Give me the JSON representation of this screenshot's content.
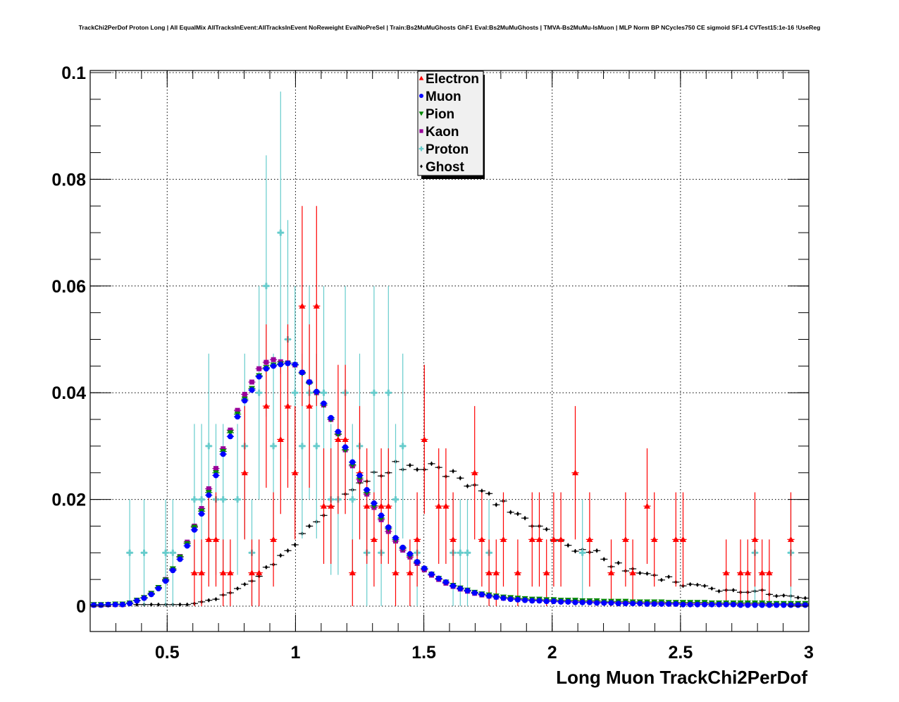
{
  "title": "TrackChi2PerDof Proton Long | All EqualMix AllTracksInEvent:AllTracksInEvent NoReweight EvalNoPreSel | Train:Bs2MuMuGhosts GhF1 Eval:Bs2MuMuGhosts | TMVA-Bs2MuMu-IsMuon | MLP Norm BP NCycles750 CE sigmoid SF1.4 CVTest15:1e-16 !UseReg",
  "chart_data": {
    "type": "scatter",
    "title": "TrackChi2PerDof Proton Long | All EqualMix AllTracksInEvent:AllTracksInEvent NoReweight EvalNoPreSel | Train:Bs2MuMuGhosts GhF1 Eval:Bs2MuMuGhosts | TMVA-Bs2MuMu-IsMuon | MLP Norm BP NCycles750 CE sigmoid SF1.4 CVTest15:1e-16 !UseReg",
    "xlabel": "Long Muon TrackChi2PerDof",
    "ylabel": "",
    "xlim": [
      0.2,
      3.0
    ],
    "ylim": [
      -0.0048,
      0.1005
    ],
    "bins": {
      "n": 100,
      "min": 0.2,
      "max": 3.0
    },
    "xticks": [
      0.5,
      1,
      1.5,
      2,
      2.5,
      3
    ],
    "xtick_labels": [
      "0.5",
      "1",
      "1.5",
      "2",
      "2.5",
      "3"
    ],
    "yticks": [
      0,
      0.02,
      0.04,
      0.06,
      0.08,
      0.1
    ],
    "ytick_labels": [
      "0",
      "0.02",
      "0.04",
      "0.06",
      "0.08",
      "0.1"
    ],
    "grid": true,
    "legend_position": "top-center",
    "series": [
      {
        "name": "Electron",
        "color": "#ff0000",
        "marker": "triangle-up",
        "sparse": {
          "14": 0.00625,
          "15": 0.00625,
          "16": 0.0125,
          "17": 0.0125,
          "18": 0.00625,
          "19": 0.00625,
          "21": 0.025,
          "22": 0.00625,
          "23": 0.00625,
          "24": 0.0375,
          "25": 0.0125,
          "26": 0.03125,
          "27": 0.0375,
          "28": 0.025,
          "29": 0.05625,
          "30": 0.0375,
          "31": 0.05625,
          "32": 0.01875,
          "33": 0.01875,
          "34": 0.03125,
          "35": 0.03125,
          "36": 0.00625,
          "37": 0.025,
          "38": 0.01875,
          "39": 0.0125,
          "40": 0.01875,
          "41": 0.01875,
          "42": 0.00625,
          "44": 0.00625,
          "45": 0.0125,
          "46": 0.03125,
          "48": 0.01875,
          "49": 0.01875,
          "50": 0.0125,
          "53": 0.025,
          "54": 0.0125,
          "55": 0.00625,
          "56": 0.00625,
          "57": 0.0125,
          "59": 0.00625,
          "61": 0.0125,
          "62": 0.0125,
          "63": 0.00625,
          "64": 0.0125,
          "65": 0.0125,
          "67": 0.025,
          "69": 0.0125,
          "72": 0.00625,
          "74": 0.0125,
          "75": 0.00625,
          "77": 0.01875,
          "78": 0.0125,
          "81": 0.0125,
          "82": 0.0125,
          "88": 0.00625,
          "90": 0.00625,
          "91": 0.00625,
          "92": 0.0125,
          "93": 0.00625,
          "94": 0.00625,
          "97": 0.0125
        }
      },
      {
        "name": "Muon",
        "color": "#0000ff",
        "marker": "circle",
        "values": [
          0.0002,
          0.0002,
          0.0003,
          0.0003,
          0.0003,
          0.0005,
          0.001,
          0.0015,
          0.0022,
          0.0033,
          0.0047,
          0.0067,
          0.0088,
          0.0113,
          0.0143,
          0.0173,
          0.0208,
          0.0245,
          0.0285,
          0.0318,
          0.0355,
          0.0385,
          0.0405,
          0.043,
          0.0445,
          0.045,
          0.0453,
          0.0455,
          0.0453,
          0.0438,
          0.042,
          0.0402,
          0.038,
          0.0353,
          0.0327,
          0.0298,
          0.027,
          0.0245,
          0.0218,
          0.0193,
          0.017,
          0.0148,
          0.0128,
          0.011,
          0.0098,
          0.0083,
          0.0071,
          0.006,
          0.0052,
          0.0045,
          0.0038,
          0.0033,
          0.0029,
          0.0025,
          0.0022,
          0.0019,
          0.0017,
          0.0015,
          0.0013,
          0.0012,
          0.0011,
          0.001,
          0.001,
          0.0009,
          0.0009,
          0.0008,
          0.0008,
          0.0007,
          0.0007,
          0.0007,
          0.0006,
          0.0006,
          0.0006,
          0.0005,
          0.0005,
          0.0005,
          0.0005,
          0.0004,
          0.0004,
          0.0004,
          0.0004,
          0.0004,
          0.0003,
          0.0003,
          0.0003,
          0.0003,
          0.0003,
          0.0003,
          0.0003,
          0.0003,
          0.0002,
          0.0002,
          0.0002,
          0.0002,
          0.0002,
          0.0002,
          0.0002,
          0.0002,
          0.0002,
          0.0002
        ]
      },
      {
        "name": "Pion",
        "color": "#008800",
        "marker": "triangle-down",
        "values": [
          0.0003,
          0.0003,
          0.0003,
          0.0004,
          0.0004,
          0.0006,
          0.0011,
          0.0016,
          0.0024,
          0.0035,
          0.0049,
          0.007,
          0.0092,
          0.0117,
          0.0148,
          0.0178,
          0.0213,
          0.025,
          0.029,
          0.0325,
          0.036,
          0.0388,
          0.0408,
          0.0432,
          0.0447,
          0.0452,
          0.0454,
          0.0455,
          0.0452,
          0.0436,
          0.0418,
          0.04,
          0.0377,
          0.035,
          0.0322,
          0.0293,
          0.0265,
          0.024,
          0.0213,
          0.0188,
          0.0165,
          0.0145,
          0.0125,
          0.0108,
          0.0095,
          0.0082,
          0.007,
          0.006,
          0.0052,
          0.0045,
          0.0039,
          0.0034,
          0.003,
          0.0026,
          0.0023,
          0.0021,
          0.0019,
          0.0017,
          0.0016,
          0.0015,
          0.0014,
          0.0013,
          0.0013,
          0.0012,
          0.0012,
          0.0011,
          0.0011,
          0.0011,
          0.001,
          0.001,
          0.001,
          0.0009,
          0.0009,
          0.0009,
          0.0009,
          0.0008,
          0.0008,
          0.0008,
          0.0008,
          0.0008,
          0.0007,
          0.0007,
          0.0007,
          0.0007,
          0.0007,
          0.0007,
          0.0006,
          0.0006,
          0.0006,
          0.0006,
          0.0006,
          0.0006,
          0.0006,
          0.0006,
          0.0005,
          0.0005,
          0.0005,
          0.0005,
          0.0005,
          0.0005
        ]
      },
      {
        "name": "Kaon",
        "color": "#990099",
        "marker": "square",
        "values": [
          0.0002,
          0.0002,
          0.0003,
          0.0003,
          0.0003,
          0.0006,
          0.0011,
          0.0016,
          0.0024,
          0.0035,
          0.005,
          0.0069,
          0.0093,
          0.012,
          0.015,
          0.0183,
          0.022,
          0.0258,
          0.0295,
          0.033,
          0.0367,
          0.0397,
          0.042,
          0.0445,
          0.0457,
          0.0462,
          0.0458,
          0.0456,
          0.0452,
          0.0438,
          0.042,
          0.04,
          0.0377,
          0.035,
          0.0323,
          0.0293,
          0.0263,
          0.0237,
          0.021,
          0.0185,
          0.0162,
          0.014,
          0.0122,
          0.0105,
          0.0092,
          0.008,
          0.0068,
          0.0058,
          0.005,
          0.0043,
          0.0037,
          0.0032,
          0.0028,
          0.0024,
          0.0021,
          0.0019,
          0.0017,
          0.0015,
          0.0014,
          0.0013,
          0.0012,
          0.0011,
          0.0011,
          0.001,
          0.001,
          0.0009,
          0.0009,
          0.0009,
          0.0008,
          0.0008,
          0.0008,
          0.0007,
          0.0007,
          0.0007,
          0.0007,
          0.0006,
          0.0006,
          0.0006,
          0.0006,
          0.0006,
          0.0005,
          0.0005,
          0.0005,
          0.0005,
          0.0005,
          0.0005,
          0.0004,
          0.0004,
          0.0004,
          0.0004,
          0.0004,
          0.0004,
          0.0004,
          0.0004,
          0.0004,
          0.0003,
          0.0003,
          0.0003,
          0.0003,
          0.0003
        ]
      },
      {
        "name": "Proton",
        "color": "#66cccc",
        "marker": "cross",
        "sparse": {
          "5": 0.01,
          "7": 0.01,
          "10": 0.01,
          "11": 0.01,
          "14": 0.02,
          "15": 0.02,
          "16": 0.03,
          "17": 0.02,
          "18": 0.02,
          "20": 0.02,
          "21": 0.03,
          "22": 0.01,
          "23": 0.04,
          "24": 0.06,
          "25": 0.03,
          "26": 0.07,
          "27": 0.05,
          "28": 0.04,
          "29": 0.03,
          "30": 0.04,
          "31": 0.03,
          "32": 0.04,
          "33": 0.02,
          "34": 0.02,
          "35": 0.04,
          "36": 0.02,
          "37": 0.03,
          "38": 0.01,
          "39": 0.04,
          "40": 0.01,
          "41": 0.04,
          "42": 0.02,
          "43": 0.03,
          "45": 0.01,
          "50": 0.01,
          "51": 0.01,
          "52": 0.01,
          "55": 0.01,
          "68": 0.01,
          "92": 0.01,
          "97": 0.01
        }
      },
      {
        "name": "Ghost",
        "color": "#000000",
        "marker": "diamond",
        "values": [
          0,
          0,
          0,
          0,
          0,
          0,
          0.0003,
          0.0003,
          0.0003,
          0.0003,
          0.0003,
          0.0003,
          0.0003,
          0.0003,
          0.0005,
          0.0008,
          0.0011,
          0.0013,
          0.0021,
          0.0025,
          0.0033,
          0.0041,
          0.0047,
          0.0056,
          0.0073,
          0.0078,
          0.0095,
          0.0104,
          0.0115,
          0.0136,
          0.015,
          0.0158,
          0.017,
          0.0187,
          0.02,
          0.021,
          0.0218,
          0.0231,
          0.0234,
          0.0251,
          0.0244,
          0.025,
          0.0271,
          0.0256,
          0.0264,
          0.0256,
          0.0256,
          0.0267,
          0.026,
          0.0243,
          0.0253,
          0.024,
          0.0225,
          0.0227,
          0.0216,
          0.0211,
          0.019,
          0.0197,
          0.0176,
          0.0173,
          0.0165,
          0.015,
          0.015,
          0.0144,
          0.0123,
          0.0123,
          0.0114,
          0.0103,
          0.0106,
          0.0101,
          0.0104,
          0.0088,
          0.0074,
          0.0081,
          0.0066,
          0.007,
          0.0062,
          0.0061,
          0.0058,
          0.0049,
          0.0055,
          0.0045,
          0.0038,
          0.0041,
          0.004,
          0.0038,
          0.0033,
          0.0028,
          0.003,
          0.003,
          0.0026,
          0.0026,
          0.0028,
          0.003,
          0.0022,
          0.0019,
          0.002,
          0.0019,
          0.0016,
          0.0015
        ]
      }
    ]
  }
}
